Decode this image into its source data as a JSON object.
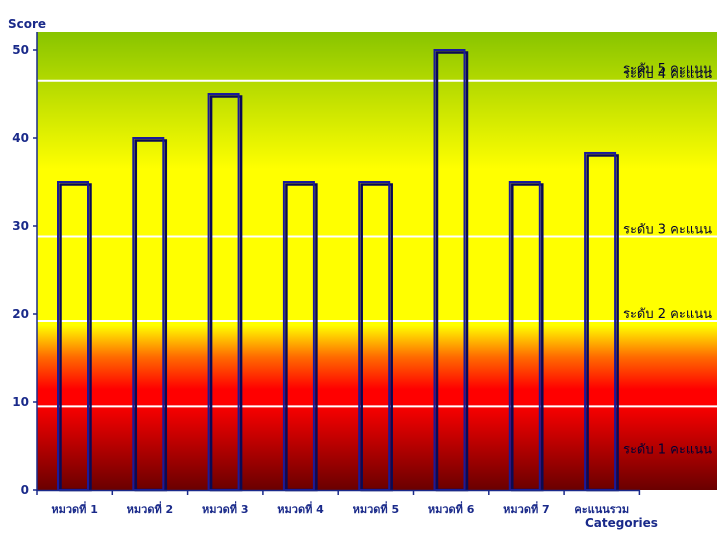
{
  "chart_data": {
    "type": "bar",
    "categories": [
      "หมวดที่ 1",
      "หมวดที่ 2",
      "หมวดที่ 3",
      "หมวดที่ 4",
      "หมวดที่ 5",
      "หมวดที่ 6",
      "หมวดที่ 7",
      "คะแนนรวม"
    ],
    "values": [
      35,
      40,
      45,
      35,
      35,
      50,
      35,
      38.3
    ],
    "ylabel": "Score",
    "xlabel": "Categories",
    "ylim": [
      0,
      50
    ],
    "yticks": [
      0,
      10,
      20,
      30,
      40,
      50
    ],
    "grid": false,
    "bar_style": {
      "fill": "none",
      "stroke": "#1a1a9a",
      "shadow": "#0a0a55"
    },
    "level_bands": [
      {
        "label": "ระดับ  1 คะแนน",
        "from": 0,
        "to": 9.5
      },
      {
        "label": "ระดับ  2 คะแนน",
        "from": 9.5,
        "to": 19.2
      },
      {
        "label": "ระดับ  3 คะแนน",
        "from": 19.2,
        "to": 28.8
      },
      {
        "label": "ระดับ  4 คะแนน",
        "from": 28.8,
        "to": 46.5
      },
      {
        "label": "ระดับ  5 คะแนน",
        "from": 46.5,
        "to": 52.3
      }
    ],
    "colors": {
      "dark_red": "#6a0000",
      "red": "#ff0000",
      "orange": "#ff6a00",
      "yellow": "#ffff00",
      "green": "#88c400",
      "axis": "#1a2a8a"
    }
  }
}
